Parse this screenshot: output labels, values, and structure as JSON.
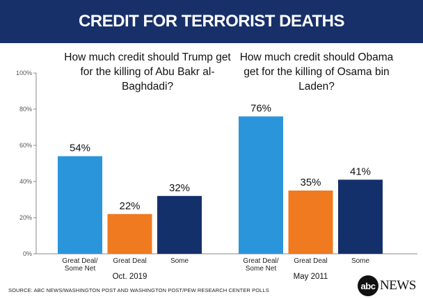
{
  "header": {
    "title": "CREDIT FOR TERRORIST DEATHS"
  },
  "colors": {
    "header_bg": "#17306a",
    "blue": "#2b95dc",
    "orange": "#f07a1f",
    "navy": "#14306b",
    "axis": "#888888",
    "grid": "#dddddd"
  },
  "chart_data": {
    "type": "bar",
    "ylim": [
      0,
      100
    ],
    "yticks": [
      "0%",
      "20%",
      "40%",
      "60%",
      "80%",
      "100%"
    ],
    "grid": false,
    "groups": [
      {
        "question": "How much credit should Trump get for the killing of Abu Bakr al-Baghdadi?",
        "period": "Oct. 2019",
        "categories": [
          "Great Deal/ Some Net",
          "Great Deal",
          "Some"
        ],
        "values": [
          54,
          22,
          32
        ],
        "labels": [
          "54%",
          "22%",
          "32%"
        ]
      },
      {
        "question": "How much credit should Obama get for the killing of Osama bin Laden?",
        "period": "May 2011",
        "categories": [
          "Great Deal/ Some Net",
          "Great Deal",
          "Some"
        ],
        "values": [
          76,
          35,
          41
        ],
        "labels": [
          "76%",
          "35%",
          "41%"
        ]
      }
    ]
  },
  "footer": {
    "source": "SOURCE: ABC NEWS/WASHINGTON POST AND WASHINGTON POST/PEW RESEARCH CENTER POLLS",
    "logo_circle": "abc",
    "logo_word": "NEWS"
  }
}
